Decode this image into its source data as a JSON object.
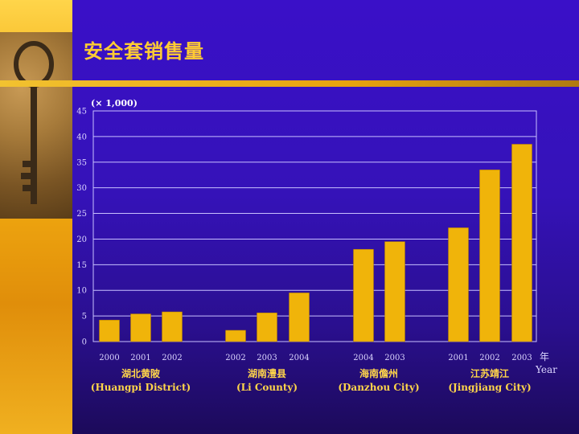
{
  "slide": {
    "title": "安全套销售量",
    "colors": {
      "background": "#3a10c8",
      "accent": "#ffcc33",
      "bar": "#f0b40a",
      "grid": "#c8c0ff"
    }
  },
  "chart_data": {
    "type": "bar",
    "unit_label": "(× 1,000)",
    "x_unit_zh": "年",
    "x_unit_en": "Year",
    "ylim": [
      0,
      45
    ],
    "yticks": [
      0,
      5,
      10,
      15,
      20,
      25,
      30,
      35,
      40,
      45
    ],
    "grid": true,
    "groups": [
      {
        "label_zh": "湖北黄陂",
        "label_en": "(Huangpi District)",
        "bars": [
          {
            "year": "2000",
            "value": 4.2
          },
          {
            "year": "2001",
            "value": 5.4
          },
          {
            "year": "2002",
            "value": 5.8
          }
        ]
      },
      {
        "label_zh": "湖南澧县",
        "label_en": "(Li County)",
        "bars": [
          {
            "year": "2002",
            "value": 2.2
          },
          {
            "year": "2003",
            "value": 5.6
          },
          {
            "year": "2004",
            "value": 9.5
          }
        ]
      },
      {
        "label_zh": "海南儋州",
        "label_en": "(Danzhou City)",
        "bars": [
          {
            "year": "2004",
            "value": 18.0
          },
          {
            "year": "2003",
            "value": 19.5
          }
        ]
      },
      {
        "label_zh": "江苏靖江",
        "label_en": "(Jingjiang City)",
        "bars": [
          {
            "year": "2001",
            "value": 22.2
          },
          {
            "year": "2002",
            "value": 33.5
          },
          {
            "year": "2003",
            "value": 38.5
          }
        ]
      }
    ]
  }
}
